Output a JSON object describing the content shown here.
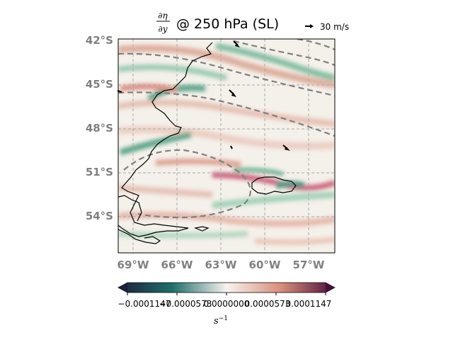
{
  "title": {
    "fraction_numerator": "∂η",
    "fraction_denominator": "∂y",
    "main": "@ 250 hPa (SL)"
  },
  "quiver_key": {
    "label": "30 m/s"
  },
  "map": {
    "lat_labels": [
      "42°S",
      "45°S",
      "48°S",
      "51°S",
      "54°S"
    ],
    "lon_labels": [
      "69°W",
      "66°W",
      "63°W",
      "60°W",
      "57°W"
    ],
    "extent": {
      "lon_min": -70.0,
      "lon_max": -55.5,
      "lat_min": -56.5,
      "lat_max": -42.0
    },
    "gridlines": "on"
  },
  "colorbar": {
    "ticks": [
      "−0.0001147",
      "−0.0000573",
      "0.0000000",
      "0.0000573",
      "0.0001147"
    ],
    "unit_base": "s",
    "unit_exp": "−1",
    "colors": [
      "#1b1e3d",
      "#1e6f6a",
      "#f7f3ee",
      "#d98e7a",
      "#4a0f3c"
    ]
  },
  "colors": {
    "coast": "#000000",
    "contour": "#808080",
    "green": "#3a9f78",
    "red": "#d46a5a"
  }
}
